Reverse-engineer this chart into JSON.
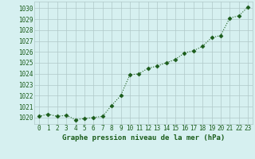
{
  "x": [
    0,
    1,
    2,
    3,
    4,
    5,
    6,
    7,
    8,
    9,
    10,
    11,
    12,
    13,
    14,
    15,
    16,
    17,
    18,
    19,
    20,
    21,
    22,
    23
  ],
  "y": [
    1020.1,
    1020.3,
    1020.1,
    1020.2,
    1019.8,
    1019.9,
    1020.0,
    1020.1,
    1021.1,
    1022.0,
    1023.9,
    1024.0,
    1024.5,
    1024.7,
    1025.0,
    1025.3,
    1025.9,
    1026.1,
    1026.5,
    1027.3,
    1027.5,
    1029.1,
    1029.3,
    1030.1
  ],
  "line_color": "#1a5c1a",
  "marker": "D",
  "marker_size": 2.5,
  "bg_color": "#d6f0f0",
  "grid_color": "#b0c8c8",
  "xlabel": "Graphe pression niveau de la mer (hPa)",
  "xlabel_color": "#1a5c1a",
  "xlabel_fontsize": 6.5,
  "ylabel_ticks": [
    1020,
    1021,
    1022,
    1023,
    1024,
    1025,
    1026,
    1027,
    1028,
    1029,
    1030
  ],
  "ylim": [
    1019.4,
    1030.6
  ],
  "xlim": [
    -0.5,
    23.5
  ],
  "tick_fontsize": 5.5,
  "tick_color": "#1a5c1a",
  "linewidth": 0.8,
  "linestyle": ":"
}
